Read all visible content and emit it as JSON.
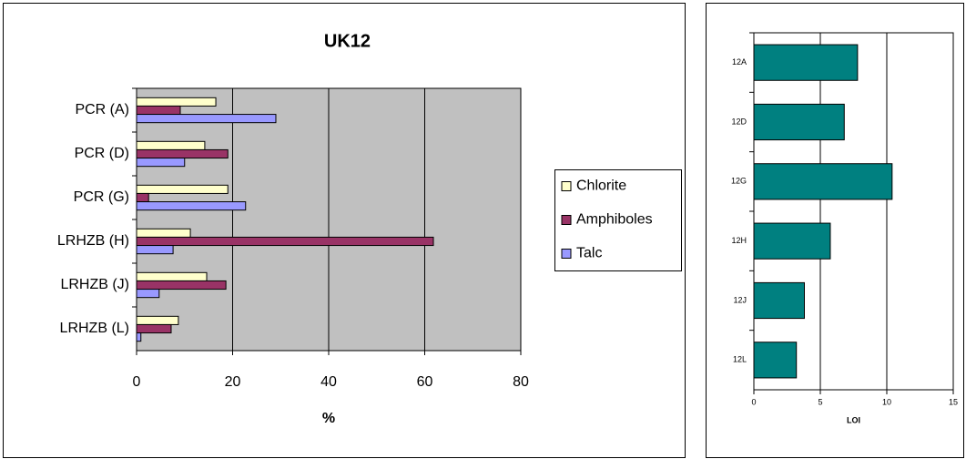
{
  "chart_data": [
    {
      "type": "bar",
      "title": "UK12",
      "xlabel": "%",
      "categories": [
        "PCR (A)",
        "PCR (D)",
        "PCR (G)",
        "LRHZB (H)",
        "LRHZB (J)",
        "LRHZB (L)"
      ],
      "series": [
        {
          "name": "Chlorite",
          "color": "#ffffcc",
          "values": [
            16.5,
            14.2,
            19,
            11.2,
            14.6,
            8.7
          ]
        },
        {
          "name": "Amphiboles",
          "color": "#993366",
          "values": [
            9.1,
            19,
            2.5,
            61.8,
            18.6,
            7.2
          ]
        },
        {
          "name": "Talc",
          "color": "#9999ff",
          "values": [
            29,
            10,
            22.7,
            7.6,
            4.7,
            0.9
          ]
        }
      ],
      "xlim": [
        0,
        80
      ],
      "xticks": [
        0,
        20,
        40,
        60,
        80
      ],
      "grid": true,
      "legend": "right",
      "plot_background": "#c0c0c0"
    },
    {
      "type": "bar",
      "xlabel": "LOI",
      "categories": [
        "12A",
        "12D",
        "12G",
        "12H",
        "12J",
        "12L"
      ],
      "values": [
        7.8,
        6.8,
        10.4,
        5.75,
        3.8,
        3.2
      ],
      "color": "#008080",
      "xlim": [
        0,
        15
      ],
      "xticks": [
        0,
        5,
        10,
        15
      ],
      "grid": true,
      "plot_background": "#ffffff"
    }
  ]
}
